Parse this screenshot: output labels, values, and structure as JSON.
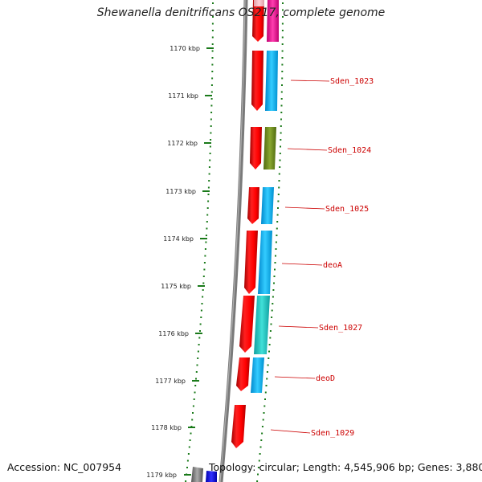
{
  "title": "Shewanella denitrificans OS217, complete genome",
  "accession": "Accession: NC_007954",
  "topology_info": "Topology: circular; Length: 4,545,906 bp; Genes: 3,880",
  "colors": {
    "cds_forward": "#ff0000",
    "tick": "#1a7a1a",
    "backbone": "#808080",
    "label_line": "#cc0000"
  },
  "kbp_ticks": [
    "1170 kbp",
    "1171 kbp",
    "1172 kbp",
    "1173 kbp",
    "1174 kbp",
    "1175 kbp",
    "1176 kbp",
    "1177 kbp",
    "1178 kbp",
    "1179 kbp"
  ],
  "gene_labels": [
    "Sden_1023",
    "Sden_1024",
    "Sden_1025",
    "deoA",
    "Sden_1027",
    "deoD",
    "Sden_1029"
  ]
}
